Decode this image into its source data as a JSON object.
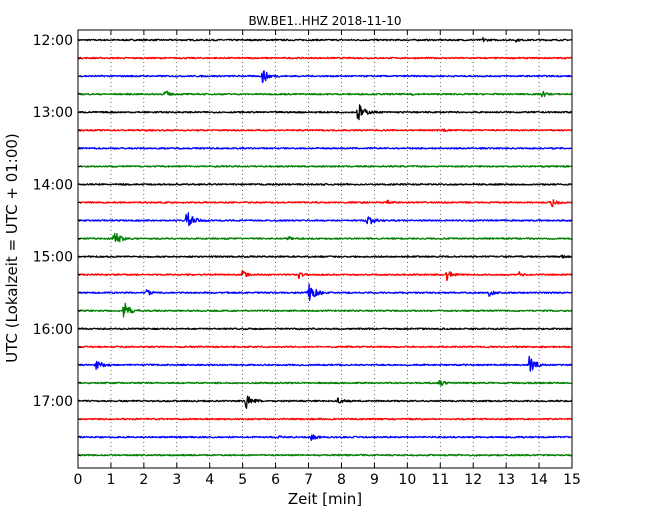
{
  "chart_data": {
    "type": "line",
    "title": "BW.BE1..HHZ 2018-11-10",
    "xlabel": "Zeit  [min]",
    "ylabel": "UTC (Lokalzeit = UTC + 01:00)",
    "xlim": [
      0,
      15
    ],
    "x_ticks": [
      "0",
      "1",
      "2",
      "3",
      "4",
      "5",
      "6",
      "7",
      "8",
      "9",
      "10",
      "11",
      "12",
      "13",
      "14",
      "15"
    ],
    "y_tick_labels": [
      "12:00",
      "13:00",
      "14:00",
      "15:00",
      "16:00",
      "17:00"
    ],
    "grid": "vertical dotted",
    "trace_interval_minutes": 15,
    "colors": [
      "#000000",
      "#ff0000",
      "#0000ff",
      "#008000"
    ],
    "traces": [
      {
        "start": "12:00",
        "color": "#000000",
        "events": [
          {
            "t": 12.3,
            "amp": 0.2
          },
          {
            "t": 13.3,
            "amp": 0.12
          }
        ]
      },
      {
        "start": "12:15",
        "color": "#ff0000",
        "events": []
      },
      {
        "start": "12:30",
        "color": "#0000ff",
        "events": [
          {
            "t": 5.6,
            "amp": 0.7
          }
        ]
      },
      {
        "start": "12:45",
        "color": "#008000",
        "events": [
          {
            "t": 2.65,
            "amp": 0.35
          },
          {
            "t": 10.1,
            "amp": 0.12
          },
          {
            "t": 14.1,
            "amp": 0.3
          }
        ]
      },
      {
        "start": "13:00",
        "color": "#000000",
        "events": [
          {
            "t": 8.5,
            "amp": 0.85
          }
        ]
      },
      {
        "start": "13:15",
        "color": "#ff0000",
        "events": [
          {
            "t": 11.1,
            "amp": 0.15
          }
        ]
      },
      {
        "start": "13:30",
        "color": "#0000ff",
        "events": []
      },
      {
        "start": "13:45",
        "color": "#008000",
        "events": []
      },
      {
        "start": "14:00",
        "color": "#000000",
        "events": []
      },
      {
        "start": "14:15",
        "color": "#ff0000",
        "events": [
          {
            "t": 14.4,
            "amp": 0.45
          },
          {
            "t": 9.4,
            "amp": 0.15
          }
        ]
      },
      {
        "start": "14:30",
        "color": "#0000ff",
        "events": [
          {
            "t": 3.3,
            "amp": 0.85
          },
          {
            "t": 8.8,
            "amp": 0.65
          }
        ]
      },
      {
        "start": "14:45",
        "color": "#008000",
        "events": [
          {
            "t": 1.1,
            "amp": 0.75
          },
          {
            "t": 6.4,
            "amp": 0.2
          }
        ]
      },
      {
        "start": "15:00",
        "color": "#000000",
        "events": [
          {
            "t": 14.7,
            "amp": 0.15
          }
        ]
      },
      {
        "start": "15:15",
        "color": "#ff0000",
        "events": [
          {
            "t": 5.0,
            "amp": 0.4
          },
          {
            "t": 6.7,
            "amp": 0.3
          },
          {
            "t": 11.2,
            "amp": 0.5
          },
          {
            "t": 13.4,
            "amp": 0.2
          }
        ]
      },
      {
        "start": "15:30",
        "color": "#0000ff",
        "events": [
          {
            "t": 2.1,
            "amp": 0.3
          },
          {
            "t": 7.0,
            "amp": 0.95
          },
          {
            "t": 12.5,
            "amp": 0.35
          }
        ]
      },
      {
        "start": "15:45",
        "color": "#008000",
        "events": [
          {
            "t": 1.4,
            "amp": 0.75
          }
        ]
      },
      {
        "start": "16:00",
        "color": "#000000",
        "events": []
      },
      {
        "start": "16:15",
        "color": "#ff0000",
        "events": []
      },
      {
        "start": "16:30",
        "color": "#0000ff",
        "events": [
          {
            "t": 0.55,
            "amp": 0.6
          },
          {
            "t": 13.7,
            "amp": 0.8
          }
        ]
      },
      {
        "start": "16:45",
        "color": "#008000",
        "events": [
          {
            "t": 11.0,
            "amp": 0.35
          }
        ]
      },
      {
        "start": "17:00",
        "color": "#000000",
        "events": [
          {
            "t": 5.1,
            "amp": 0.75
          },
          {
            "t": 7.9,
            "amp": 0.4
          }
        ]
      },
      {
        "start": "17:15",
        "color": "#ff0000",
        "events": []
      },
      {
        "start": "17:30",
        "color": "#0000ff",
        "events": [
          {
            "t": 7.1,
            "amp": 0.35
          },
          {
            "t": 6.1,
            "amp": 0.12
          }
        ]
      },
      {
        "start": "17:45",
        "color": "#008000",
        "events": []
      }
    ]
  }
}
